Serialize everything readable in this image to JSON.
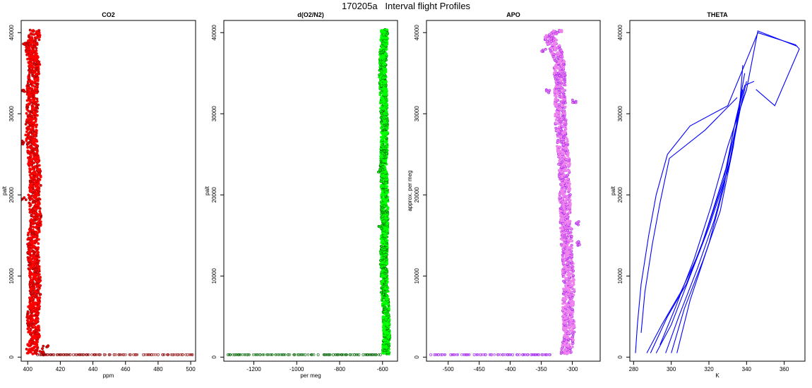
{
  "figure_title": "170205a   Interval flight Profiles",
  "chart_data": [
    {
      "type": "scatter",
      "title": "CO2",
      "xlabel": "ppm",
      "ylabel": "palt",
      "xlim": [
        396,
        503
      ],
      "ylim": [
        -500,
        41500
      ],
      "xticks": [
        400,
        420,
        440,
        460,
        480,
        500
      ],
      "yticks": [
        0,
        10000,
        20000,
        30000,
        40000
      ],
      "color": "#ff0000",
      "edge_color": "#8b0000",
      "profile": [
        [
          402,
          400
        ],
        [
          404,
          2000
        ],
        [
          403,
          5000
        ],
        [
          405,
          8000
        ],
        [
          404,
          11000
        ],
        [
          403,
          14000
        ],
        [
          405,
          17000
        ],
        [
          404,
          20000
        ],
        [
          405,
          22000
        ],
        [
          403,
          25000
        ],
        [
          402,
          28000
        ],
        [
          403,
          31000
        ],
        [
          403,
          34000
        ],
        [
          404,
          36000
        ],
        [
          402,
          38000
        ],
        [
          404,
          39500
        ],
        [
          405,
          40300
        ]
      ],
      "band_halfwidth": 3.5,
      "excursions": [
        [
          398,
          38500
        ],
        [
          399,
          32800
        ],
        [
          398,
          26500
        ],
        [
          397,
          19500
        ],
        [
          411,
          1200
        ],
        [
          409,
          500
        ]
      ],
      "surface_points_x": [
        406,
        408,
        410,
        412,
        414,
        416,
        418,
        420,
        422,
        424,
        426,
        428,
        430,
        432,
        434,
        436,
        441,
        444,
        447,
        450,
        453,
        456,
        459,
        463,
        466,
        471,
        476,
        480,
        483,
        486,
        489,
        492,
        495,
        498,
        501
      ],
      "surface_points_y": 300
    },
    {
      "type": "scatter",
      "title": "d(O2/N2)",
      "xlabel": "per meg",
      "ylabel": "palt",
      "xlim": [
        -1340,
        -530
      ],
      "ylim": [
        -500,
        41500
      ],
      "xticks": [
        -1200,
        -1000,
        -800,
        -600
      ],
      "yticks": [
        0,
        10000,
        20000,
        30000,
        40000
      ],
      "color": "#00ff00",
      "edge_color": "#006400",
      "profile": [
        [
          -585,
          400
        ],
        [
          -580,
          3000
        ],
        [
          -585,
          6000
        ],
        [
          -590,
          9000
        ],
        [
          -595,
          12000
        ],
        [
          -590,
          16000
        ],
        [
          -590,
          20000
        ],
        [
          -595,
          24000
        ],
        [
          -590,
          28000
        ],
        [
          -595,
          32000
        ],
        [
          -600,
          35000
        ],
        [
          -595,
          38000
        ],
        [
          -590,
          40400
        ]
      ],
      "band_halfwidth": 16,
      "excursions": [
        [
          -605,
          37500
        ],
        [
          -610,
          23000
        ],
        [
          -612,
          16000
        ],
        [
          -600,
          8000
        ]
      ],
      "surface_points_x": [
        -1320,
        -1310,
        -1290,
        -1270,
        -1230,
        -1170,
        -1040,
        -1010,
        -990,
        -960,
        -930,
        -900,
        -870,
        -850,
        -830,
        -810,
        -790,
        -770,
        -750,
        -730,
        -710,
        -690,
        -670,
        -650,
        -630,
        -610
      ],
      "surface_points_y": 300
    },
    {
      "type": "scatter",
      "title": "APO",
      "xlabel": "",
      "ylabel": "approx. per meg",
      "xlim": [
        -535,
        -255
      ],
      "ylim": [
        -500,
        41500
      ],
      "xticks": [
        -500,
        -450,
        -400,
        -350,
        -300
      ],
      "yticks": [
        0,
        10000,
        20000,
        30000,
        40000
      ],
      "color": "#ee82ee",
      "edge_color": "#a020f0",
      "profile": [
        [
          -310,
          400
        ],
        [
          -305,
          3000
        ],
        [
          -307,
          6000
        ],
        [
          -305,
          9000
        ],
        [
          -308,
          12000
        ],
        [
          -310,
          16000
        ],
        [
          -312,
          20000
        ],
        [
          -313,
          24000
        ],
        [
          -318,
          28000
        ],
        [
          -320,
          32000
        ],
        [
          -320,
          35000
        ],
        [
          -322,
          37000
        ],
        [
          -330,
          38500
        ],
        [
          -338,
          39500
        ],
        [
          -320,
          40300
        ]
      ],
      "band_halfwidth": 9,
      "excursions": [
        [
          -290,
          16500
        ],
        [
          -288,
          14000
        ],
        [
          -296,
          31500
        ],
        [
          -340,
          32800
        ],
        [
          -345,
          37800
        ]
      ],
      "surface_points_x": [
        -528,
        -522,
        -516,
        -510,
        -496,
        -470,
        -458,
        -448,
        -440,
        -430,
        -420,
        -412,
        -404,
        -396,
        -388,
        -380,
        -372,
        -366,
        -360,
        -354,
        -348,
        -342,
        -336
      ],
      "surface_points_y": 300
    },
    {
      "type": "line",
      "title": "THETA",
      "xlabel": "K",
      "ylabel": "palt",
      "xlim": [
        278,
        371
      ],
      "ylim": [
        -500,
        41500
      ],
      "xticks": [
        280,
        300,
        320,
        340,
        360
      ],
      "yticks": [
        0,
        10000,
        20000,
        30000,
        40000
      ],
      "color": "#0000ff",
      "series": [
        {
          "points": [
            [
              281,
              500
            ],
            [
              282,
              4000
            ],
            [
              284,
              9000
            ],
            [
              288,
              15000
            ],
            [
              292,
              20000
            ],
            [
              298,
              25000
            ],
            [
              310,
              28500
            ],
            [
              330,
              31000
            ],
            [
              346,
              40000
            ]
          ]
        },
        {
          "points": [
            [
              284,
              3000
            ],
            [
              286,
              8000
            ],
            [
              290,
              14000
            ],
            [
              294,
              19000
            ],
            [
              299,
              24500
            ],
            [
              318,
              28000
            ],
            [
              335,
              32000
            ]
          ]
        },
        {
          "points": [
            [
              287,
              500
            ],
            [
              295,
              4000
            ],
            [
              305,
              8000
            ],
            [
              315,
              13000
            ],
            [
              322,
              18000
            ],
            [
              330,
              24000
            ],
            [
              336,
              30000
            ],
            [
              338,
              36000
            ]
          ]
        },
        {
          "points": [
            [
              292,
              500
            ],
            [
              300,
              4000
            ],
            [
              310,
              10000
            ],
            [
              320,
              16000
            ],
            [
              330,
              23000
            ],
            [
              336,
              30000
            ],
            [
              340,
              34000
            ]
          ]
        },
        {
          "points": [
            [
              297,
              500
            ],
            [
              304,
              5000
            ],
            [
              314,
              11000
            ],
            [
              323,
              17000
            ],
            [
              332,
              25000
            ],
            [
              337,
              31000
            ],
            [
              340,
              33000
            ]
          ]
        },
        {
          "points": [
            [
              300,
              500
            ],
            [
              307,
              6000
            ],
            [
              317,
              12000
            ],
            [
              326,
              18000
            ],
            [
              333,
              26000
            ],
            [
              336,
              31000
            ],
            [
              339,
              35000
            ]
          ]
        },
        {
          "points": [
            [
              303,
              500
            ],
            [
              310,
              7000
            ],
            [
              320,
              14000
            ],
            [
              328,
              21000
            ],
            [
              333,
              28000
            ],
            [
              339,
              33500
            ],
            [
              344,
              34000
            ]
          ]
        },
        {
          "points": [
            [
              289,
              500
            ],
            [
              298,
              5000
            ],
            [
              308,
              9000
            ],
            [
              318,
              15000
            ],
            [
              328,
              22000
            ],
            [
              334,
              29000
            ],
            [
              338,
              33000
            ]
          ]
        },
        {
          "points": [
            [
              294,
              1500
            ],
            [
              302,
              6000
            ],
            [
              312,
              12000
            ],
            [
              321,
              18500
            ],
            [
              330,
              26000
            ],
            [
              340,
              33000
            ],
            [
              346,
              40200
            ],
            [
              357,
              39200
            ],
            [
              367,
              38300
            ]
          ]
        },
        {
          "points": [
            [
              346,
              40000
            ],
            [
              366,
              38500
            ],
            [
              368,
              38000
            ],
            [
              355,
              31000
            ],
            [
              345,
              33000
            ]
          ]
        }
      ]
    }
  ]
}
